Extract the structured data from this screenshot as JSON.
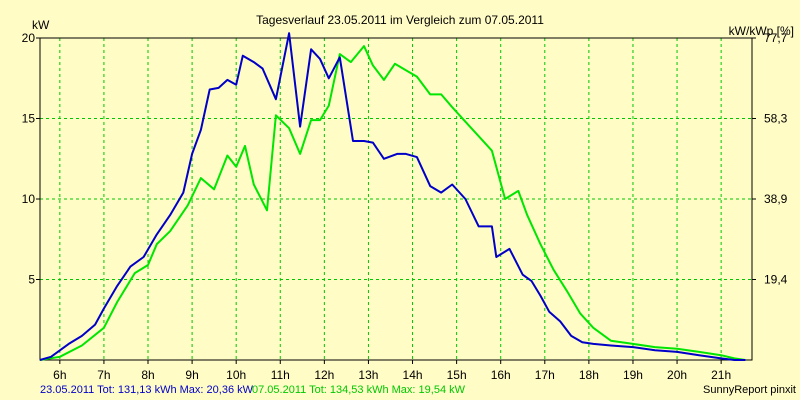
{
  "chart_data": {
    "type": "line",
    "title": "Tagesverlauf 23.05.2011 im Vergleich zum 07.05.2011",
    "ylabel_left": "kW",
    "ylabel_right": "kW/kWp [%]",
    "ylim": [
      0,
      20
    ],
    "xlim": [
      5.55,
      21.7
    ],
    "x_ticks": [
      "6h",
      "7h",
      "8h",
      "9h",
      "10h",
      "11h",
      "12h",
      "13h",
      "14h",
      "15h",
      "16h",
      "17h",
      "18h",
      "19h",
      "20h",
      "21h"
    ],
    "y_ticks_left": [
      "5",
      "10",
      "15",
      "20"
    ],
    "y_ticks_right": [
      "19,4",
      "38,9",
      "58,3",
      "77,7"
    ],
    "grid": true,
    "colors": {
      "background": "#fffcc6",
      "plot_bg": "#fffcc6",
      "grid": "#00c800",
      "series1": "#0000c8",
      "series2": "#00e600"
    },
    "series": [
      {
        "name": "23.05.2011",
        "color": "#0000c8",
        "x": [
          5.55,
          5.8,
          6.2,
          6.5,
          6.8,
          7.0,
          7.3,
          7.6,
          7.9,
          8.2,
          8.5,
          8.8,
          9.0,
          9.2,
          9.4,
          9.6,
          9.8,
          10.0,
          10.15,
          10.4,
          10.6,
          10.9,
          11.2,
          11.45,
          11.7,
          11.9,
          12.1,
          12.35,
          12.65,
          12.9,
          13.1,
          13.35,
          13.65,
          13.85,
          14.1,
          14.4,
          14.65,
          14.9,
          15.2,
          15.5,
          15.8,
          15.9,
          16.2,
          16.5,
          16.7,
          16.9,
          17.1,
          17.35,
          17.6,
          17.85,
          18.1,
          18.5,
          19.0,
          19.5,
          20.0,
          20.5,
          21.0,
          21.3,
          21.55
        ],
        "values": [
          0.0,
          0.2,
          1.0,
          1.5,
          2.2,
          3.2,
          4.6,
          5.8,
          6.4,
          7.8,
          9.0,
          10.4,
          12.8,
          14.3,
          16.8,
          16.9,
          17.4,
          17.1,
          18.9,
          18.5,
          18.1,
          16.2,
          20.3,
          14.5,
          19.3,
          18.7,
          17.5,
          18.8,
          13.6,
          13.6,
          13.5,
          12.5,
          12.8,
          12.8,
          12.6,
          10.8,
          10.4,
          10.9,
          10.0,
          8.3,
          8.3,
          6.4,
          6.9,
          5.3,
          4.9,
          4.0,
          3.0,
          2.4,
          1.5,
          1.1,
          1.0,
          0.9,
          0.8,
          0.6,
          0.5,
          0.3,
          0.1,
          0.0,
          0.0
        ]
      },
      {
        "name": "07.05.2011",
        "color": "#00e600",
        "x": [
          5.55,
          6.0,
          6.5,
          7.0,
          7.3,
          7.7,
          8.0,
          8.2,
          8.5,
          8.9,
          9.2,
          9.5,
          9.8,
          10.0,
          10.2,
          10.4,
          10.7,
          10.9,
          11.2,
          11.45,
          11.7,
          11.9,
          12.1,
          12.35,
          12.6,
          12.9,
          13.1,
          13.35,
          13.6,
          13.85,
          14.1,
          14.4,
          14.65,
          14.9,
          15.2,
          15.5,
          15.8,
          16.1,
          16.4,
          16.6,
          16.9,
          17.2,
          17.5,
          17.8,
          18.1,
          18.5,
          19.0,
          19.5,
          20.0,
          20.5,
          21.0,
          21.3,
          21.55
        ],
        "values": [
          0.0,
          0.2,
          0.9,
          2.0,
          3.6,
          5.4,
          5.9,
          7.2,
          8.0,
          9.6,
          11.3,
          10.6,
          12.7,
          12.0,
          13.3,
          10.9,
          9.3,
          15.2,
          14.4,
          12.8,
          14.9,
          14.9,
          15.8,
          19.0,
          18.5,
          19.5,
          18.3,
          17.4,
          18.4,
          18.0,
          17.6,
          16.5,
          16.5,
          15.7,
          14.8,
          13.9,
          13.0,
          10.0,
          10.5,
          9.0,
          7.2,
          5.6,
          4.3,
          2.9,
          2.0,
          1.2,
          1.0,
          0.8,
          0.7,
          0.5,
          0.3,
          0.1,
          0.0
        ]
      }
    ]
  },
  "footer": {
    "series1_text": "23.05.2011 Tot: 131,13 kWh Max: 20,36 kW",
    "series2_text": "07.05.2011 Tot: 134,53 kWh Max: 19,54 kW",
    "credit": "SunnyReport pinxit"
  }
}
